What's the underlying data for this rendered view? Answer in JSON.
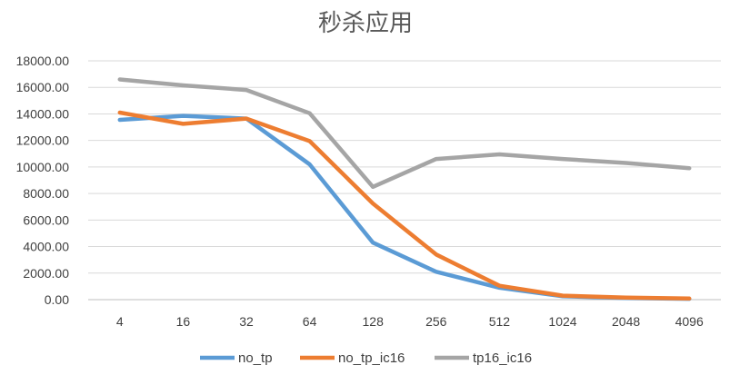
{
  "chart_data": {
    "type": "line",
    "title": "秒杀应用",
    "xlabel": "",
    "ylabel": "",
    "categories": [
      "4",
      "16",
      "32",
      "64",
      "128",
      "256",
      "512",
      "1024",
      "2048",
      "4096"
    ],
    "y_ticks": [
      "0.00",
      "2000.00",
      "4000.00",
      "6000.00",
      "8000.00",
      "10000.00",
      "12000.00",
      "14000.00",
      "16000.00",
      "18000.00"
    ],
    "ylim": [
      0,
      18000
    ],
    "grid": true,
    "legend_position": "bottom",
    "series": [
      {
        "name": "no_tp",
        "color": "#5b9bd5",
        "values": [
          13550,
          13850,
          13650,
          10200,
          4300,
          2100,
          900,
          250,
          120,
          60
        ]
      },
      {
        "name": "no_tp_ic16",
        "color": "#ed7d31",
        "values": [
          14100,
          13250,
          13650,
          11950,
          7250,
          3400,
          1050,
          300,
          150,
          80
        ]
      },
      {
        "name": "tp16_ic16",
        "color": "#a5a5a5",
        "values": [
          16600,
          16150,
          15800,
          14050,
          8500,
          10600,
          10950,
          10600,
          10300,
          9900
        ]
      }
    ]
  }
}
